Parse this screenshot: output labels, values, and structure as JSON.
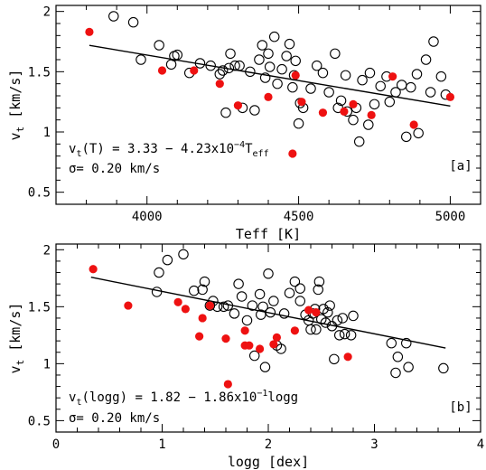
{
  "chart_data": [
    {
      "type": "scatter",
      "panel_tag": "[a]",
      "xlabel": "Teff [K]",
      "ylabel": "v",
      "ylabel_sub": "t",
      "ylabel_units": " [km/s]",
      "xlim": [
        3700,
        5100
      ],
      "ylim": [
        0.4,
        2.05
      ],
      "xticks": [
        4000,
        4500,
        5000
      ],
      "yticks": [
        0.5,
        1,
        1.5,
        2
      ],
      "ytick_labels": [
        "0.5",
        "1",
        "1.5",
        "2"
      ],
      "fit": {
        "intercept": 3.33,
        "slope": -0.000423,
        "x_range": [
          3810,
          5000
        ]
      },
      "annotation": {
        "line1_prefix": "v",
        "line1_sub": "t",
        "line1_body": "(T) = 3.33 − 4.23x10",
        "line1_exp": "−4",
        "line1_var": "T",
        "line1_var_sub": "eff",
        "line2": "σ= 0.20 km/s"
      },
      "series": [
        {
          "marker": "open-circle",
          "color": "#000000",
          "points": [
            [
              3890,
              1.96
            ],
            [
              3955,
              1.91
            ],
            [
              3980,
              1.6
            ],
            [
              4040,
              1.72
            ],
            [
              4080,
              1.56
            ],
            [
              4090,
              1.63
            ],
            [
              4100,
              1.64
            ],
            [
              4140,
              1.49
            ],
            [
              4175,
              1.57
            ],
            [
              4210,
              1.55
            ],
            [
              4240,
              1.48
            ],
            [
              4250,
              1.51
            ],
            [
              4260,
              1.16
            ],
            [
              4270,
              1.53
            ],
            [
              4275,
              1.65
            ],
            [
              4290,
              1.55
            ],
            [
              4305,
              1.55
            ],
            [
              4315,
              1.2
            ],
            [
              4340,
              1.5
            ],
            [
              4355,
              1.18
            ],
            [
              4370,
              1.6
            ],
            [
              4380,
              1.72
            ],
            [
              4390,
              1.45
            ],
            [
              4400,
              1.65
            ],
            [
              4405,
              1.54
            ],
            [
              4420,
              1.79
            ],
            [
              4430,
              1.4
            ],
            [
              4445,
              1.52
            ],
            [
              4460,
              1.63
            ],
            [
              4470,
              1.73
            ],
            [
              4480,
              1.37
            ],
            [
              4485,
              1.47
            ],
            [
              4490,
              1.59
            ],
            [
              4500,
              1.07
            ],
            [
              4505,
              1.24
            ],
            [
              4515,
              1.2
            ],
            [
              4540,
              1.36
            ],
            [
              4560,
              1.55
            ],
            [
              4580,
              1.49
            ],
            [
              4600,
              1.33
            ],
            [
              4620,
              1.65
            ],
            [
              4630,
              1.2
            ],
            [
              4640,
              1.26
            ],
            [
              4655,
              1.47
            ],
            [
              4660,
              1.17
            ],
            [
              4680,
              1.1
            ],
            [
              4690,
              1.2
            ],
            [
              4700,
              0.92
            ],
            [
              4710,
              1.43
            ],
            [
              4730,
              1.06
            ],
            [
              4735,
              1.49
            ],
            [
              4750,
              1.23
            ],
            [
              4770,
              1.38
            ],
            [
              4790,
              1.46
            ],
            [
              4800,
              1.25
            ],
            [
              4820,
              1.33
            ],
            [
              4840,
              1.39
            ],
            [
              4855,
              0.96
            ],
            [
              4870,
              1.37
            ],
            [
              4890,
              1.48
            ],
            [
              4895,
              0.99
            ],
            [
              4920,
              1.6
            ],
            [
              4935,
              1.33
            ],
            [
              4945,
              1.75
            ],
            [
              4970,
              1.46
            ],
            [
              4985,
              1.31
            ]
          ]
        },
        {
          "marker": "filled-circle",
          "color": "#ee1111",
          "points": [
            [
              3810,
              1.83
            ],
            [
              4050,
              1.51
            ],
            [
              4155,
              1.51
            ],
            [
              4240,
              1.4
            ],
            [
              4300,
              1.22
            ],
            [
              4400,
              1.29
            ],
            [
              4480,
              0.82
            ],
            [
              4490,
              1.47
            ],
            [
              4510,
              1.25
            ],
            [
              4580,
              1.16
            ],
            [
              4650,
              1.17
            ],
            [
              4680,
              1.23
            ],
            [
              4740,
              1.14
            ],
            [
              4810,
              1.46
            ],
            [
              4880,
              1.06
            ],
            [
              5000,
              1.29
            ]
          ]
        }
      ]
    },
    {
      "type": "scatter",
      "panel_tag": "[b]",
      "xlabel": "logg [dex]",
      "ylabel": "v",
      "ylabel_sub": "t",
      "ylabel_units": " [km/s]",
      "xlim": [
        0,
        4
      ],
      "ylim": [
        0.4,
        2.05
      ],
      "xticks": [
        0,
        1,
        2,
        3,
        4
      ],
      "yticks": [
        0.5,
        1,
        1.5,
        2
      ],
      "ytick_labels": [
        "0.5",
        "1",
        "1.5",
        "2"
      ],
      "fit": {
        "intercept": 1.82,
        "slope": -0.186,
        "x_range": [
          0.33,
          3.67
        ]
      },
      "annotation": {
        "line1_prefix": "v",
        "line1_sub": "t",
        "line1_body": "(logg) = 1.82 − 1.86x10",
        "line1_exp": "−1",
        "line1_var": "logg",
        "line1_var_sub": "",
        "line2": "σ= 0.20 km/s"
      },
      "series": [
        {
          "marker": "open-circle",
          "color": "#000000",
          "points": [
            [
              0.95,
              1.63
            ],
            [
              0.97,
              1.8
            ],
            [
              1.05,
              1.91
            ],
            [
              1.2,
              1.96
            ],
            [
              1.3,
              1.64
            ],
            [
              1.38,
              1.65
            ],
            [
              1.4,
              1.72
            ],
            [
              1.45,
              1.51
            ],
            [
              1.48,
              1.55
            ],
            [
              1.52,
              1.5
            ],
            [
              1.58,
              1.5
            ],
            [
              1.62,
              1.51
            ],
            [
              1.68,
              1.44
            ],
            [
              1.72,
              1.7
            ],
            [
              1.75,
              1.59
            ],
            [
              1.8,
              1.38
            ],
            [
              1.85,
              1.51
            ],
            [
              1.87,
              1.07
            ],
            [
              1.92,
              1.61
            ],
            [
              1.93,
              1.43
            ],
            [
              1.95,
              1.5
            ],
            [
              1.97,
              0.97
            ],
            [
              2.0,
              1.79
            ],
            [
              2.02,
              1.45
            ],
            [
              2.05,
              1.55
            ],
            [
              2.08,
              1.16
            ],
            [
              2.12,
              1.13
            ],
            [
              2.15,
              1.44
            ],
            [
              2.2,
              1.62
            ],
            [
              2.25,
              1.72
            ],
            [
              2.3,
              1.55
            ],
            [
              2.3,
              1.66
            ],
            [
              2.35,
              1.43
            ],
            [
              2.38,
              1.38
            ],
            [
              2.4,
              1.3
            ],
            [
              2.42,
              1.44
            ],
            [
              2.44,
              1.48
            ],
            [
              2.45,
              1.3
            ],
            [
              2.47,
              1.65
            ],
            [
              2.48,
              1.72
            ],
            [
              2.5,
              1.39
            ],
            [
              2.52,
              1.48
            ],
            [
              2.54,
              1.36
            ],
            [
              2.56,
              1.45
            ],
            [
              2.58,
              1.51
            ],
            [
              2.6,
              1.33
            ],
            [
              2.62,
              1.04
            ],
            [
              2.65,
              1.38
            ],
            [
              2.67,
              1.25
            ],
            [
              2.7,
              1.4
            ],
            [
              2.72,
              1.26
            ],
            [
              2.78,
              1.25
            ],
            [
              2.8,
              1.42
            ],
            [
              3.16,
              1.18
            ],
            [
              3.2,
              0.92
            ],
            [
              3.22,
              1.06
            ],
            [
              3.3,
              1.18
            ],
            [
              3.32,
              0.97
            ],
            [
              3.65,
              0.96
            ]
          ]
        },
        {
          "marker": "filled-circle",
          "color": "#ee1111",
          "points": [
            [
              0.35,
              1.83
            ],
            [
              0.68,
              1.51
            ],
            [
              1.15,
              1.54
            ],
            [
              1.22,
              1.48
            ],
            [
              1.35,
              1.24
            ],
            [
              1.38,
              1.4
            ],
            [
              1.45,
              1.51
            ],
            [
              1.6,
              1.22
            ],
            [
              1.62,
              0.82
            ],
            [
              1.78,
              1.16
            ],
            [
              1.78,
              1.29
            ],
            [
              1.82,
              1.16
            ],
            [
              1.92,
              1.13
            ],
            [
              2.05,
              1.17
            ],
            [
              2.08,
              1.23
            ],
            [
              2.25,
              1.29
            ],
            [
              2.38,
              1.47
            ],
            [
              2.45,
              1.45
            ],
            [
              2.75,
              1.06
            ]
          ]
        }
      ]
    }
  ]
}
